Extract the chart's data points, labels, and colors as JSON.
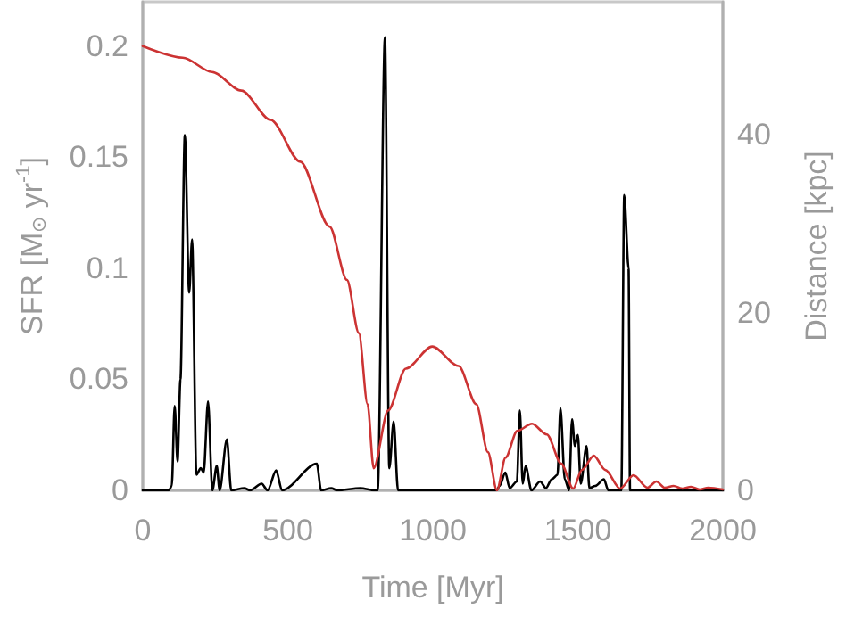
{
  "chart_data": {
    "type": "line",
    "xlabel": "Time [Myr]",
    "ylabel": "SFR [M$_{⊙}$ yr$^{-1}$]",
    "y2label": "Distance [kpc]",
    "xlim": [
      0,
      2000
    ],
    "xticks": [
      0,
      500,
      1000,
      1500,
      2000
    ],
    "ylim": [
      0,
      0.22
    ],
    "yticks": [
      0,
      0.05,
      0.1,
      0.15,
      0.2
    ],
    "y2lim": [
      0,
      55
    ],
    "y2ticks": [
      0,
      20,
      40
    ],
    "grid": false,
    "marker": "none",
    "line_style": "solid",
    "series": [
      {
        "color": "#000000",
        "x": [
          0,
          90,
          100,
          110,
          120,
          130,
          145,
          160,
          170,
          185,
          200,
          210,
          225,
          240,
          255,
          265,
          290,
          305,
          350,
          370,
          410,
          430,
          460,
          480,
          600,
          615,
          650,
          670,
          750,
          800,
          810,
          835,
          850,
          865,
          880,
          1220,
          1230,
          1250,
          1265,
          1290,
          1300,
          1310,
          1320,
          1340,
          1370,
          1390,
          1410,
          1430,
          1440,
          1455,
          1470,
          1480,
          1490,
          1500,
          1510,
          1530,
          1540,
          1560,
          1590,
          1605,
          1650,
          1660,
          1675,
          1680,
          2000
        ],
        "values": [
          0,
          0,
          0.002,
          0.038,
          0.013,
          0.05,
          0.16,
          0.089,
          0.113,
          0.007,
          0.01,
          0.008,
          0.04,
          0,
          0.011,
          0,
          0.023,
          0,
          0.001,
          0,
          0.003,
          0,
          0.009,
          0,
          0.012,
          0,
          0.001,
          0,
          0.001,
          0,
          0,
          0.204,
          0.01,
          0.031,
          0,
          0,
          0.002,
          0.008,
          0.001,
          0.004,
          0.036,
          0.003,
          0.011,
          0,
          0.004,
          0.001,
          0.005,
          0.007,
          0.037,
          0.005,
          0,
          0.032,
          0.02,
          0.025,
          0.003,
          0.02,
          0.001,
          0.002,
          0.005,
          0,
          0,
          0.133,
          0.1,
          0,
          0
        ]
      },
      {
        "color": "#cc3333",
        "axis": "y2",
        "x": [
          0,
          138,
          239,
          340,
          441,
          543,
          644,
          704,
          745,
          775,
          796,
          846,
          907,
          998,
          1089,
          1150,
          1190,
          1221,
          1251,
          1291,
          1342,
          1393,
          1443,
          1484,
          1514,
          1555,
          1595,
          1646,
          1692,
          1740,
          1771,
          1800,
          1830,
          1860,
          1890,
          1920,
          1950,
          2000
        ],
        "values": [
          50,
          48.7,
          47.1,
          45,
          41.7,
          37,
          29.7,
          23.7,
          17.7,
          9.7,
          2.5,
          9,
          13.7,
          16.2,
          14,
          9.7,
          4.3,
          0,
          3.7,
          6.7,
          7.5,
          6.3,
          3,
          0.2,
          2.3,
          3.9,
          2.3,
          0.2,
          1.7,
          0.3,
          1,
          0.3,
          0.5,
          0.2,
          0.4,
          0.1,
          0.3,
          0.1
        ]
      }
    ]
  }
}
